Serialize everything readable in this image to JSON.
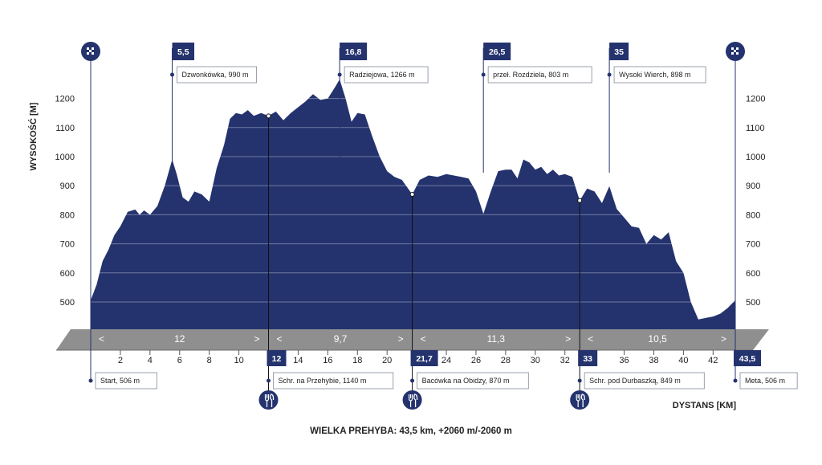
{
  "chart_data": {
    "type": "area",
    "title": "WIELKA PREHYBA: 43,5 km, +2060 m/-2060 m",
    "xlabel": "DYSTANS [KM]",
    "ylabel": "WYSOKOŚĆ [M]",
    "xlim": [
      0,
      43.5
    ],
    "ylim": [
      430,
      1370
    ],
    "x_ticks": [
      2,
      4,
      6,
      8,
      10,
      14,
      16,
      18,
      20,
      24,
      26,
      28,
      30,
      32,
      36,
      38,
      40,
      42
    ],
    "y_ticks": [
      500,
      600,
      700,
      800,
      900,
      1000,
      1100,
      1200
    ],
    "color": "#24336e",
    "profile": [
      [
        0,
        506
      ],
      [
        0.4,
        560
      ],
      [
        0.8,
        640
      ],
      [
        1.2,
        680
      ],
      [
        1.6,
        730
      ],
      [
        2.0,
        760
      ],
      [
        2.5,
        810
      ],
      [
        3.0,
        818
      ],
      [
        3.3,
        800
      ],
      [
        3.6,
        815
      ],
      [
        4.0,
        800
      ],
      [
        4.5,
        830
      ],
      [
        5.0,
        900
      ],
      [
        5.5,
        990
      ],
      [
        5.8,
        940
      ],
      [
        6.2,
        860
      ],
      [
        6.6,
        845
      ],
      [
        7.0,
        880
      ],
      [
        7.5,
        870
      ],
      [
        8.0,
        845
      ],
      [
        8.5,
        960
      ],
      [
        9.0,
        1040
      ],
      [
        9.4,
        1130
      ],
      [
        9.8,
        1150
      ],
      [
        10.2,
        1145
      ],
      [
        10.6,
        1160
      ],
      [
        11.0,
        1140
      ],
      [
        11.5,
        1150
      ],
      [
        12.0,
        1140
      ],
      [
        12.5,
        1155
      ],
      [
        13.0,
        1125
      ],
      [
        13.5,
        1150
      ],
      [
        14.0,
        1170
      ],
      [
        14.5,
        1190
      ],
      [
        15.0,
        1215
      ],
      [
        15.5,
        1195
      ],
      [
        16.0,
        1200
      ],
      [
        16.5,
        1240
      ],
      [
        16.8,
        1266
      ],
      [
        17.2,
        1200
      ],
      [
        17.6,
        1120
      ],
      [
        18.0,
        1150
      ],
      [
        18.5,
        1145
      ],
      [
        19.0,
        1070
      ],
      [
        19.5,
        1000
      ],
      [
        20.0,
        950
      ],
      [
        20.5,
        930
      ],
      [
        21.0,
        920
      ],
      [
        21.7,
        870
      ],
      [
        22.2,
        920
      ],
      [
        22.8,
        935
      ],
      [
        23.4,
        930
      ],
      [
        24.0,
        940
      ],
      [
        24.5,
        935
      ],
      [
        25.0,
        930
      ],
      [
        25.5,
        925
      ],
      [
        26.0,
        880
      ],
      [
        26.5,
        803
      ],
      [
        27.0,
        880
      ],
      [
        27.5,
        950
      ],
      [
        28.0,
        955
      ],
      [
        28.4,
        955
      ],
      [
        28.8,
        925
      ],
      [
        29.2,
        990
      ],
      [
        29.6,
        980
      ],
      [
        30.0,
        955
      ],
      [
        30.4,
        965
      ],
      [
        30.8,
        940
      ],
      [
        31.2,
        955
      ],
      [
        31.6,
        935
      ],
      [
        32.0,
        940
      ],
      [
        32.5,
        930
      ],
      [
        33.0,
        849
      ],
      [
        33.5,
        890
      ],
      [
        34.0,
        880
      ],
      [
        34.5,
        840
      ],
      [
        35.0,
        898
      ],
      [
        35.5,
        820
      ],
      [
        36.0,
        790
      ],
      [
        36.5,
        760
      ],
      [
        37.0,
        755
      ],
      [
        37.5,
        700
      ],
      [
        38.0,
        730
      ],
      [
        38.5,
        715
      ],
      [
        39.0,
        740
      ],
      [
        39.5,
        640
      ],
      [
        40.0,
        600
      ],
      [
        40.5,
        500
      ],
      [
        41.0,
        440
      ],
      [
        41.5,
        445
      ],
      [
        42.0,
        450
      ],
      [
        42.5,
        460
      ],
      [
        43.0,
        480
      ],
      [
        43.5,
        506
      ]
    ],
    "top_markers": [
      {
        "km": 5.5,
        "label": "5,5",
        "name": "Dzwonkówka, 990 m"
      },
      {
        "km": 16.8,
        "label": "16,8",
        "name": "Radziejowa, 1266 m"
      },
      {
        "km": 26.5,
        "label": "26,5",
        "name": "przeł. Rozdziela, 803 m"
      },
      {
        "km": 35,
        "label": "35",
        "name": "Wysoki Wierch, 898 m"
      }
    ],
    "bottom_markers": [
      {
        "km": 0,
        "label": "",
        "name": "Start, 506 m",
        "food": false
      },
      {
        "km": 12,
        "label": "12",
        "name": "Schr. na Przehybie, 1140 m",
        "food": true
      },
      {
        "km": 21.7,
        "label": "21,7",
        "name": "Bacówka na Obidzy, 870 m",
        "food": true
      },
      {
        "km": 33,
        "label": "33",
        "name": "Schr. pod Durbaszką, 849 m",
        "food": true
      },
      {
        "km": 43.5,
        "label": "43,5",
        "name": "Meta, 506 m",
        "food": false
      }
    ],
    "segments": [
      {
        "from": 0,
        "to": 12,
        "label": "12"
      },
      {
        "from": 12,
        "to": 21.7,
        "label": "9,7"
      },
      {
        "from": 21.7,
        "to": 33,
        "label": "11,3"
      },
      {
        "from": 33,
        "to": 43.5,
        "label": "10,5"
      }
    ],
    "segment_arrows": {
      "left": "<",
      "right": ">"
    }
  }
}
